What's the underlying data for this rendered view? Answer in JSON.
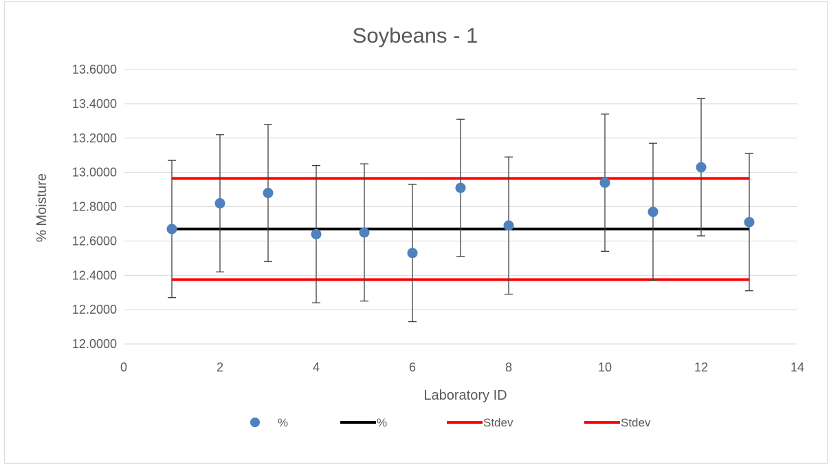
{
  "chart_data": {
    "type": "scatter",
    "title": "Soybeans - 1",
    "xlabel": "Laboratory ID",
    "ylabel": "% Moisture",
    "xlim": [
      0,
      14
    ],
    "ylim": [
      12.0,
      13.6
    ],
    "x_ticks": [
      "0",
      "2",
      "4",
      "6",
      "8",
      "10",
      "12",
      "14"
    ],
    "y_ticks": [
      "12.0000",
      "12.2000",
      "12.4000",
      "12.6000",
      "12.8000",
      "13.0000",
      "13.2000",
      "13.4000",
      "13.6000"
    ],
    "grid": "horizontal",
    "legend_position": "bottom",
    "series": [
      {
        "name": "%",
        "kind": "scatter",
        "color": "#4f81bd",
        "error_bar": 0.4,
        "points": [
          {
            "x": 1,
            "y": 12.67
          },
          {
            "x": 2,
            "y": 12.82
          },
          {
            "x": 3,
            "y": 12.88
          },
          {
            "x": 4,
            "y": 12.64
          },
          {
            "x": 5,
            "y": 12.65
          },
          {
            "x": 6,
            "y": 12.53
          },
          {
            "x": 7,
            "y": 12.91
          },
          {
            "x": 8,
            "y": 12.69
          },
          {
            "x": 10,
            "y": 12.94
          },
          {
            "x": 11,
            "y": 12.77
          },
          {
            "x": 12,
            "y": 13.03
          },
          {
            "x": 13,
            "y": 12.71
          }
        ]
      },
      {
        "name": "%",
        "kind": "line",
        "color": "#000000",
        "points": [
          {
            "x": 1,
            "y": 12.67
          },
          {
            "x": 13,
            "y": 12.67
          }
        ]
      },
      {
        "name": "Stdev",
        "kind": "line",
        "color": "#ff0000",
        "points": [
          {
            "x": 1,
            "y": 12.965
          },
          {
            "x": 13,
            "y": 12.965
          }
        ]
      },
      {
        "name": "Stdev",
        "kind": "line",
        "color": "#ff0000",
        "points": [
          {
            "x": 1,
            "y": 12.375
          },
          {
            "x": 13,
            "y": 12.375
          }
        ]
      }
    ]
  }
}
